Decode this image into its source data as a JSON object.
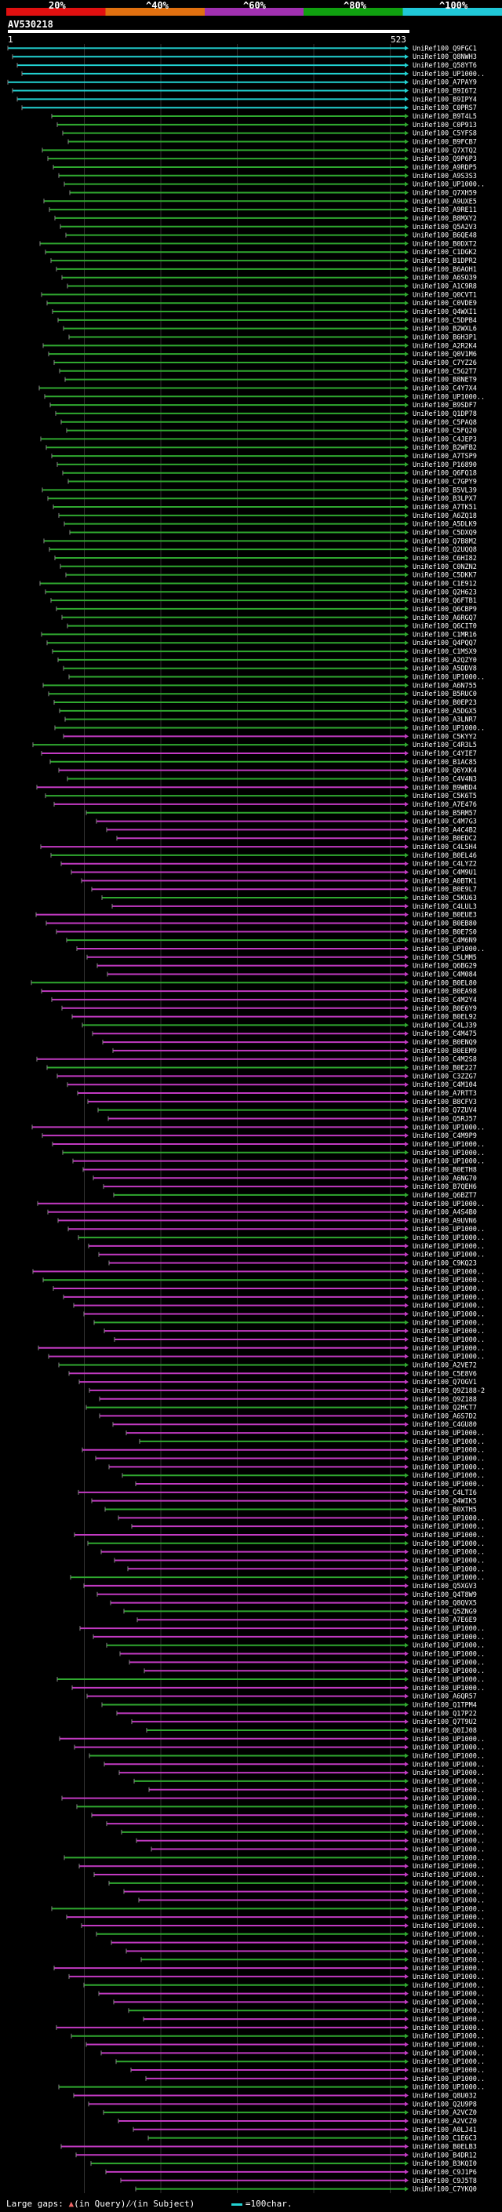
{
  "legend": {
    "labels": [
      "20%",
      "^40%",
      "^60%",
      "^80%",
      "^100%"
    ],
    "colors": [
      "#e01010",
      "#e07010",
      "#a030b0",
      "#10a010",
      "#20c8d8"
    ]
  },
  "query": {
    "id": "AV530218",
    "start": "1",
    "end": "523"
  },
  "hit_colors": {
    "cyan": "#22d3d3",
    "green": "#2fa82f",
    "magenta": "#c23ac2",
    "grey_tick": "#888888"
  },
  "hits": [
    "UniRef100_Q9FGC1",
    "UniRef100_Q8NWH3",
    "UniRef100_Q58YT6",
    "UniRef100_UP1000..",
    "UniRef100_A7PAY9",
    "UniRef100_B9I6T2",
    "UniRef100_B9IPY4",
    "UniRef100_C0PRS7",
    "UniRef100_B9T4L5",
    "UniRef100_C0P913",
    "UniRef100_C5YFS8",
    "UniRef100_B9FCB7",
    "UniRef100_Q7XTQ2",
    "UniRef100_Q9P6P3",
    "UniRef100_A9RDP5",
    "UniRef100_A9S3S3",
    "UniRef100_UP1000..",
    "UniRef100_Q7XH59",
    "UniRef100_A9UXE5",
    "UniRef100_A9RE11",
    "UniRef100_B8MXY2",
    "UniRef100_Q5A2V3",
    "UniRef100_B6QE48",
    "UniRef100_B0DXT2",
    "UniRef100_C1DGK2",
    "UniRef100_B1DPR2",
    "UniRef100_B6AOH1",
    "UniRef100_A6SO39",
    "UniRef100_A1C9R8",
    "UniRef100_Q0CVT1",
    "UniRef100_C0VDE9",
    "UniRef100_Q4WXI1",
    "UniRef100_C5DPB4",
    "UniRef100_B2WXL6",
    "UniRef100_B6H3P1",
    "UniRef100_A2R2K4",
    "UniRef100_Q0V1M6",
    "UniRef100_C7YZ26",
    "UniRef100_C5G2T7",
    "UniRef100_B8NET9",
    "UniRef100_C4Y7X4",
    "UniRef100_UP1000..",
    "UniRef100_B9SDF7",
    "UniRef100_Q1DP78",
    "UniRef100_C5PAQ8",
    "UniRef100_C5FQ20",
    "UniRef100_C4JEP3",
    "UniRef100_B2WFB2",
    "UniRef100_A7TSP9",
    "UniRef100_P16890",
    "UniRef100_Q6FQ18",
    "UniRef100_C7GPY9",
    "UniRef100_B5VL39",
    "UniRef100_B3LPX7",
    "UniRef100_A7TK51",
    "UniRef100_A6ZQ18",
    "UniRef100_A5DLK9",
    "UniRef100_C5DXQ9",
    "UniRef100_Q7B8M2",
    "UniRef100_Q2UQQ8",
    "UniRef100_C6HI82",
    "UniRef100_C0NZN2",
    "UniRef100_C5DKK7",
    "UniRef100_C1E912",
    "UniRef100_Q2H623",
    "UniRef100_Q6FTB1",
    "UniRef100_Q6CBP9",
    "UniRef100_A6RGQ7",
    "UniRef100_Q6CIT0",
    "UniRef100_C1MR16",
    "UniRef100_Q4PQQ7",
    "UniRef100_C1MSX9",
    "UniRef100_A2QZY0",
    "UniRef100_A5DDV8",
    "UniRef100_UP1000..",
    "UniRef100_A6N755",
    "UniRef100_B5RUC0",
    "UniRef100_B0EP23",
    "UniRef100_A5DGX5",
    "UniRef100_A3LNR7",
    "UniRef100_UP1000..",
    "UniRef100_C5KYY2",
    "UniRef100_C4R3L5",
    "UniRef100_C4YIE7",
    "UniRef100_B1AC85",
    "UniRef100_Q6YXK4",
    "UniRef100_C4V4N3",
    "UniRef100_B9WBD4",
    "UniRef100_C5K6T5",
    "UniRef100_A7E476",
    "UniRef100_B5RM57",
    "UniRef100_C4M7G3",
    "UniRef100_A4C4B2",
    "UniRef100_B0EDC2",
    "UniRef100_C4LSH4",
    "UniRef100_B0EL46",
    "UniRef100_C4LYZ2",
    "UniRef100_C4M9U1",
    "UniRef100_A0BTK1",
    "UniRef100_B0E9L7",
    "UniRef100_C5KU63",
    "UniRef100_C4LUL3",
    "UniRef100_B0EUE3",
    "UniRef100_B0EB80",
    "UniRef100_B0E7S0",
    "UniRef100_C4M6N9",
    "UniRef100_UP1000..",
    "UniRef100_C5LMM5",
    "UniRef100_Q6BG29",
    "UniRef100_C4M084",
    "UniRef100_B0EL80",
    "UniRef100_B0EA98",
    "UniRef100_C4M2Y4",
    "UniRef100_B0E6Y9",
    "UniRef100_B0EL92",
    "UniRef100_C4LJ39",
    "UniRef100_C4M475",
    "UniRef100_B0ENQ9",
    "UniRef100_B0EEM9",
    "UniRef100_C4M2S8",
    "UniRef100_B0E227",
    "UniRef100_C3ZZG7",
    "UniRef100_C4M104",
    "UniRef100_A7RTT3",
    "UniRef100_B8CFV3",
    "UniRef100_Q7ZUV4",
    "UniRef100_Q5RJ57",
    "UniRef100_UP1000..",
    "UniRef100_C4M9P9",
    "UniRef100_UP1000..",
    "UniRef100_UP1000..",
    "UniRef100_UP1000..",
    "UniRef100_B0ETH8",
    "UniRef100_A6NG70",
    "UniRef100_B7QEH6",
    "UniRef100_Q6BZT7",
    "UniRef100_UP1000..",
    "UniRef100_A4S4B0",
    "UniRef100_A9UVN6",
    "UniRef100_UP1000..",
    "UniRef100_UP1000..",
    "UniRef100_UP1000..",
    "UniRef100_UP1000..",
    "UniRef100_C9KQ23",
    "UniRef100_UP1000..",
    "UniRef100_UP1000..",
    "UniRef100_UP1000..",
    "UniRef100_UP1000..",
    "UniRef100_UP1000..",
    "UniRef100_UP1000..",
    "UniRef100_UP1000..",
    "UniRef100_UP1000..",
    "UniRef100_UP1000..",
    "UniRef100_UP1000..",
    "UniRef100_UP1000..",
    "UniRef100_A2VE72",
    "UniRef100_C5E8V6",
    "UniRef100_Q7OGV1",
    "UniRef100_Q9Z188-2",
    "UniRef100_Q9Z188",
    "UniRef100_Q2HCT7",
    "UniRef100_A6S7D2",
    "UniRef100_C4GU80",
    "UniRef100_UP1000..",
    "UniRef100_UP1000..",
    "UniRef100_UP1000..",
    "UniRef100_UP1000..",
    "UniRef100_UP1000..",
    "UniRef100_UP1000..",
    "UniRef100_UP1000..",
    "UniRef100_C4LTI6",
    "UniRef100_Q4WIK5",
    "UniRef100_B0XTH5",
    "UniRef100_UP1000..",
    "UniRef100_UP1000..",
    "UniRef100_UP1000..",
    "UniRef100_UP1000..",
    "UniRef100_UP1000..",
    "UniRef100_UP1000..",
    "UniRef100_UP1000..",
    "UniRef100_UP1000..",
    "UniRef100_Q5XGV3",
    "UniRef100_Q4T8W9",
    "UniRef100_Q8QVX5",
    "UniRef100_Q5ZNG9",
    "UniRef100_A7E6E9",
    "UniRef100_UP1000..",
    "UniRef100_UP1000..",
    "UniRef100_UP1000..",
    "UniRef100_UP1000..",
    "UniRef100_UP1000..",
    "UniRef100_UP1000..",
    "UniRef100_UP1000..",
    "UniRef100_UP1000..",
    "UniRef100_A6QR57",
    "UniRef100_Q1TPM4",
    "UniRef100_Q17P22",
    "UniRef100_Q7T9U2",
    "UniRef100_Q0IJ08",
    "UniRef100_UP1000..",
    "UniRef100_UP1000..",
    "UniRef100_UP1000..",
    "UniRef100_UP1000..",
    "UniRef100_UP1000..",
    "UniRef100_UP1000..",
    "UniRef100_UP1000..",
    "UniRef100_UP1000..",
    "UniRef100_UP1000..",
    "UniRef100_UP1000..",
    "UniRef100_UP1000..",
    "UniRef100_UP1000..",
    "UniRef100_UP1000..",
    "UniRef100_UP1000..",
    "UniRef100_UP1000..",
    "UniRef100_UP1000..",
    "UniRef100_UP1000..",
    "UniRef100_UP1000..",
    "UniRef100_UP1000..",
    "UniRef100_UP1000..",
    "UniRef100_UP1000..",
    "UniRef100_UP1000..",
    "UniRef100_UP1000..",
    "UniRef100_UP1000..",
    "UniRef100_UP1000..",
    "UniRef100_UP1000..",
    "UniRef100_UP1000..",
    "UniRef100_UP1000..",
    "UniRef100_UP1000..",
    "UniRef100_UP1000..",
    "UniRef100_UP1000..",
    "UniRef100_UP1000..",
    "UniRef100_UP1000..",
    "UniRef100_UP1000..",
    "UniRef100_UP1000..",
    "UniRef100_UP1000..",
    "UniRef100_UP1000..",
    "UniRef100_UP1000..",
    "UniRef100_UP1000..",
    "UniRef100_UP1000..",
    "UniRef100_UP1000..",
    "UniRef100_UP1000..",
    "UniRef100_Q8U032",
    "UniRef100_Q2U9P8",
    "UniRef100_A2VCZ0",
    "UniRef100_A2VCZ0",
    "UniRef100_A0LJ41",
    "UniRef100_C1E6C3",
    "UniRef100_B0ELB3",
    "UniRef100_B4DR12",
    "UniRef100_B3KQI0",
    "UniRef100_C9J1P6",
    "UniRef100_C9J5T8",
    "UniRef100_C7YKQ0"
  ],
  "footer": {
    "large_gaps": "Large gaps:",
    "in_query": "(in Query)/",
    "in_subject": "(in Subject)",
    "scale": "=100char."
  }
}
